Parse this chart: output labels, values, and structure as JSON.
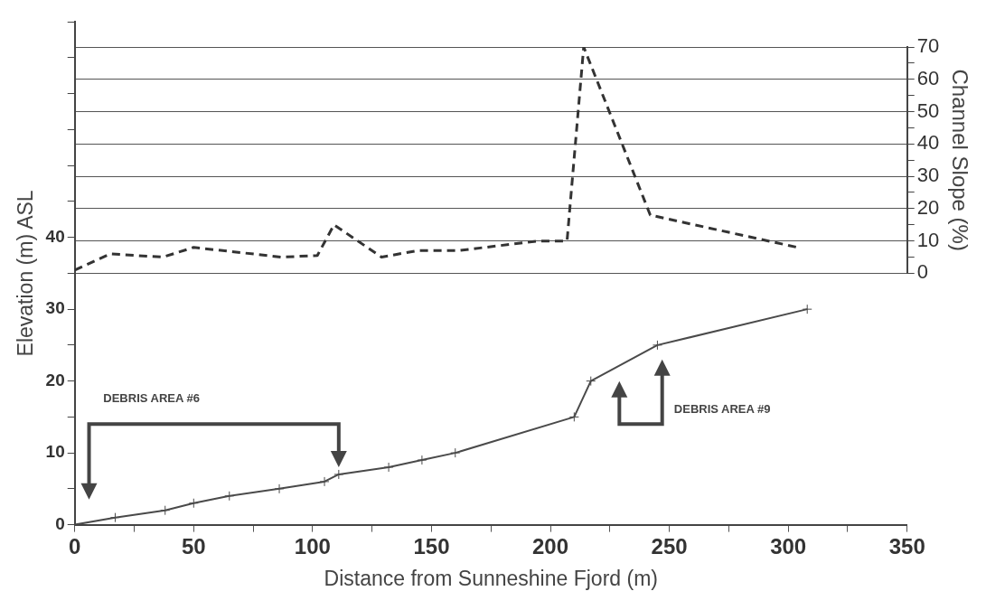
{
  "chart_data": {
    "type": "line",
    "xlabel": "Distance from Sunneshine Fjord (m)",
    "ylabel": "Elevation (m) ASL",
    "y2label": "Channel Slope (%)",
    "xlim": [
      0,
      350
    ],
    "xticks": [
      0,
      {
        "value": 25,
        "label": null
      },
      50,
      {
        "value": 75,
        "label": null
      },
      100,
      {
        "value": 125,
        "label": null
      },
      150,
      {
        "value": 175,
        "label": null
      },
      200,
      {
        "value": 225,
        "label": null
      },
      250,
      {
        "value": 275,
        "label": null
      },
      300,
      {
        "value": 325,
        "label": null
      },
      350
    ],
    "ylim": [
      0,
      70
    ],
    "yticks": [
      0,
      {
        "value": 5,
        "label": null
      },
      10,
      {
        "value": 15,
        "label": null
      },
      20,
      {
        "value": 25,
        "label": null
      },
      30,
      {
        "value": 35,
        "label": null
      },
      40,
      {
        "value": 45,
        "label": null
      },
      {
        "value": 50,
        "label": null
      },
      {
        "value": 55,
        "label": null
      },
      {
        "value": 60,
        "label": null
      },
      {
        "value": 65,
        "label": null
      },
      {
        "value": 70,
        "label": null
      }
    ],
    "y2lim": [
      0,
      70
    ],
    "y2ticks": [
      0,
      {
        "value": 5,
        "label": null
      },
      10,
      {
        "value": 15,
        "label": null
      },
      20,
      {
        "value": 25,
        "label": null
      },
      30,
      {
        "value": 35,
        "label": null
      },
      40,
      {
        "value": 45,
        "label": null
      },
      50,
      {
        "value": 55,
        "label": null
      },
      60,
      {
        "value": 65,
        "label": null
      },
      70
    ],
    "grid": "y2",
    "legend": false,
    "series": [
      {
        "color": "#4a4a4a",
        "marker": "cross",
        "line_style": "solid",
        "x": [
          0,
          17,
          38,
          50,
          65,
          86,
          105,
          111,
          132,
          146,
          160,
          210,
          217,
          245,
          308
        ],
        "values": [
          0,
          1,
          2,
          3,
          4,
          5,
          6,
          7,
          8,
          9,
          10,
          15,
          20,
          25,
          30
        ]
      },
      {
        "axis": "y2",
        "color": "#333333",
        "marker": "none",
        "line_style": "dashed",
        "x": [
          0,
          15,
          37,
          50,
          87,
          102,
          109,
          129,
          144,
          161,
          195,
          207,
          214,
          242,
          304
        ],
        "values": [
          1,
          6,
          5,
          8,
          5,
          5.5,
          15,
          5,
          7,
          7,
          10,
          10,
          70,
          18,
          8
        ]
      }
    ],
    "annotations": [
      "DEBRIS AREA #6",
      "DEBRIS AREA #9"
    ]
  }
}
